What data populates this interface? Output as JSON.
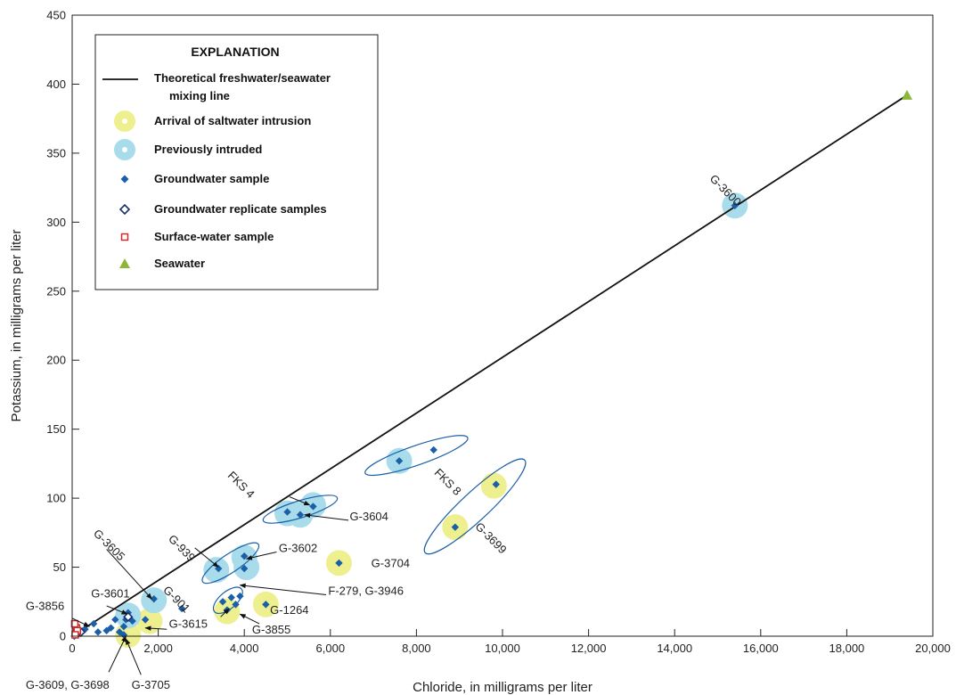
{
  "chart_data": {
    "type": "scatter",
    "xlabel": "Chloride, in milligrams per liter",
    "ylabel": "Potassium, in milligrams per liter",
    "xlim": [
      0,
      20000
    ],
    "ylim": [
      0,
      450
    ],
    "x_ticks": [
      0,
      2000,
      4000,
      6000,
      8000,
      10000,
      12000,
      14000,
      16000,
      18000,
      20000
    ],
    "x_tick_labels": [
      "0",
      "2,000",
      "4,000",
      "6,000",
      "8,000",
      "10,000",
      "12,000",
      "14,000",
      "16,000",
      "18,000",
      "20,000"
    ],
    "y_ticks": [
      0,
      50,
      100,
      150,
      200,
      250,
      300,
      350,
      400,
      450
    ],
    "y_tick_labels": [
      "0",
      "50",
      "100",
      "150",
      "200",
      "250",
      "300",
      "350",
      "400",
      "450"
    ],
    "mixing_line": {
      "x": [
        0,
        19400
      ],
      "y": [
        0,
        392
      ]
    },
    "series": [
      {
        "name": "Groundwater sample",
        "points": [
          [
            15400,
            312
          ],
          [
            7600,
            127
          ],
          [
            8400,
            135
          ],
          [
            9850,
            110
          ],
          [
            8900,
            79
          ],
          [
            5000,
            90
          ],
          [
            5600,
            94
          ],
          [
            5300,
            88
          ],
          [
            6200,
            53
          ],
          [
            3400,
            49
          ],
          [
            4000,
            58
          ],
          [
            4000,
            49
          ],
          [
            3500,
            25
          ],
          [
            3700,
            28
          ],
          [
            3900,
            29
          ],
          [
            3800,
            23
          ],
          [
            3600,
            19
          ],
          [
            4500,
            23
          ],
          [
            1900,
            27
          ],
          [
            2550,
            20
          ],
          [
            1700,
            12
          ],
          [
            1300,
            17
          ],
          [
            1250,
            12
          ],
          [
            1400,
            11
          ],
          [
            1000,
            12
          ],
          [
            1200,
            7
          ],
          [
            900,
            6
          ],
          [
            1100,
            3
          ],
          [
            1200,
            1
          ],
          [
            600,
            3
          ],
          [
            800,
            4
          ],
          [
            500,
            9
          ],
          [
            300,
            5
          ],
          [
            250,
            4
          ],
          [
            150,
            2
          ],
          [
            100,
            1
          ],
          [
            50,
            0
          ]
        ]
      },
      {
        "name": "Groundwater replicate samples",
        "points": [
          [
            1300,
            14
          ],
          [
            200,
            3
          ]
        ]
      },
      {
        "name": "Surface-water sample",
        "points": [
          [
            80,
            2
          ],
          [
            100,
            6
          ],
          [
            60,
            9
          ],
          [
            120,
            4
          ],
          [
            70,
            1
          ]
        ]
      },
      {
        "name": "Seawater",
        "points": [
          [
            19400,
            392
          ]
        ]
      }
    ],
    "circles": {
      "arrival": [
        [
          9800,
          109
        ],
        [
          8900,
          79
        ],
        [
          6200,
          53
        ],
        [
          4500,
          23
        ],
        [
          3600,
          18
        ],
        [
          1800,
          11
        ],
        [
          1300,
          1
        ]
      ],
      "previous": [
        [
          15400,
          312
        ],
        [
          7600,
          127
        ],
        [
          5000,
          89
        ],
        [
          5600,
          95
        ],
        [
          5300,
          88
        ],
        [
          3350,
          48
        ],
        [
          4000,
          57
        ],
        [
          4050,
          50
        ],
        [
          1900,
          26
        ],
        [
          1300,
          15
        ]
      ]
    },
    "ellipses": [
      {
        "cx": 8000,
        "cy": 131,
        "rx": 1260,
        "ry": 3.2,
        "angle": -19
      },
      {
        "cx": 9360,
        "cy": 94,
        "rx": 1580,
        "ry": 4.6,
        "angle": -43
      },
      {
        "cx": 5300,
        "cy": 92,
        "rx": 900,
        "ry": 2.8,
        "angle": -17
      },
      {
        "cx": 3680,
        "cy": 53,
        "rx": 780,
        "ry": 3.0,
        "angle": -34
      },
      {
        "cx": 3620,
        "cy": 26,
        "rx": 410,
        "ry": 2.8,
        "angle": -40
      }
    ],
    "annotations": [
      {
        "text": "G-3600",
        "x": 14800,
        "y": 331,
        "rotate": 45
      },
      {
        "text": "FKS 4",
        "x": 3600,
        "y": 116,
        "rotate": 45
      },
      {
        "text": "FKS 8",
        "x": 8400,
        "y": 118,
        "rotate": 45
      },
      {
        "text": "G-3699",
        "x": 9350,
        "y": 79,
        "rotate": 45
      },
      {
        "text": "G-3604",
        "x": 6450,
        "y": 84,
        "rotate": 0
      },
      {
        "text": "G-939",
        "x": 2220,
        "y": 70,
        "rotate": 45
      },
      {
        "text": "G-3602",
        "x": 4800,
        "y": 61,
        "rotate": 0
      },
      {
        "text": "G-3704",
        "x": 6950,
        "y": 50,
        "rotate": 0
      },
      {
        "text": "F-279, G-3946",
        "x": 5950,
        "y": 30,
        "rotate": 0
      },
      {
        "text": "G-3605",
        "x": 480,
        "y": 74,
        "rotate": 45
      },
      {
        "text": "G-901",
        "x": 2100,
        "y": 33,
        "rotate": 45
      },
      {
        "text": "G-1264",
        "x": 4600,
        "y": 16,
        "rotate": 0
      },
      {
        "text": "G-3601",
        "x": 440,
        "y": 28,
        "rotate": 0
      },
      {
        "text": "G-3856",
        "x": -1080,
        "y": 19,
        "rotate": 0
      },
      {
        "text": "G-3615",
        "x": 2250,
        "y": 6,
        "rotate": 0
      },
      {
        "text": "G-3855",
        "x": 4180,
        "y": 2,
        "rotate": 0
      },
      {
        "text": "G-3609, G-3698",
        "x": -1080,
        "y": -38,
        "rotate": 0
      },
      {
        "text": "G-3705",
        "x": 1380,
        "y": -38,
        "rotate": 0
      }
    ],
    "arrows": [
      {
        "from": [
          5050,
          101
        ],
        "to": [
          5520,
          95
        ]
      },
      {
        "from": [
          6420,
          84
        ],
        "to": [
          5400,
          88
        ]
      },
      {
        "from": [
          2850,
          64
        ],
        "to": [
          3400,
          50
        ]
      },
      {
        "from": [
          4750,
          61
        ],
        "to": [
          4050,
          56
        ]
      },
      {
        "from": [
          5900,
          30
        ],
        "to": [
          3900,
          37
        ]
      },
      {
        "from": [
          800,
          63
        ],
        "to": [
          1850,
          27
        ]
      },
      {
        "from": [
          800,
          22
        ],
        "to": [
          1280,
          16
        ]
      },
      {
        "from": [
          0,
          13
        ],
        "to": [
          400,
          7
        ]
      },
      {
        "from": [
          3450,
          14
        ],
        "to": [
          3650,
          20
        ]
      },
      {
        "from": [
          4350,
          9
        ],
        "to": [
          3900,
          16
        ]
      },
      {
        "from": [
          2200,
          5
        ],
        "to": [
          1700,
          6
        ]
      },
      {
        "from": [
          850,
          -26
        ],
        "to": [
          1250,
          0
        ]
      },
      {
        "from": [
          1600,
          -28
        ],
        "to": [
          1250,
          -2
        ]
      }
    ],
    "legend": {
      "title": "EXPLANATION",
      "items": [
        {
          "label": "Theoretical freshwater/seawater",
          "label2": "mixing line",
          "symbol": "line"
        },
        {
          "label": "Arrival of saltwater intrusion",
          "symbol": "arrival-circle"
        },
        {
          "label": "Previously intruded",
          "symbol": "previous-circle"
        },
        {
          "label": "Groundwater sample",
          "symbol": "diamond"
        },
        {
          "label": "Groundwater replicate samples",
          "symbol": "open-diamond"
        },
        {
          "label": "Surface-water sample",
          "symbol": "open-square"
        },
        {
          "label": "Seawater",
          "symbol": "triangle"
        }
      ]
    },
    "colors": {
      "groundwater": "#1a5fa8",
      "arrival": "#eef090",
      "previous": "#a9dceb",
      "surface": "#d12a2a",
      "seawater": "#8cb83a",
      "line": "#111111"
    }
  }
}
